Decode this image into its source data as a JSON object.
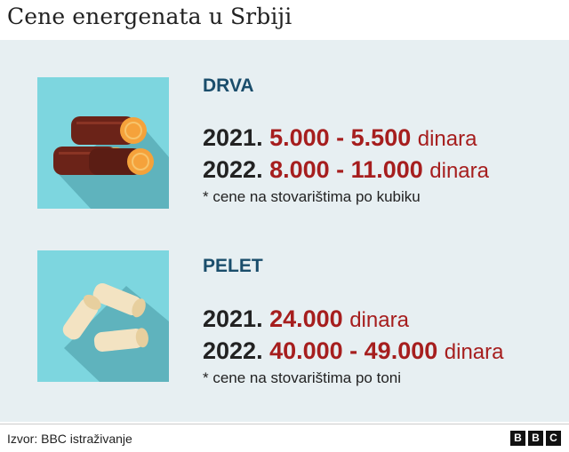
{
  "title": "Cene energenata u Srbiji",
  "items": [
    {
      "icon": "firewood-logs-icon",
      "category": "DRVA",
      "rows": [
        {
          "year": "2021.",
          "price": "5.000 - 5.500",
          "unit": "dinara"
        },
        {
          "year": "2022.",
          "price": "8.000 - 11.000",
          "unit": "dinara"
        }
      ],
      "note": "* cene na stovarištima po kubiku"
    },
    {
      "icon": "wood-pellets-icon",
      "category": "PELET",
      "rows": [
        {
          "year": "2021.",
          "price": "24.000",
          "unit": "dinara"
        },
        {
          "year": "2022.",
          "price": "40.000 - 49.000",
          "unit": "dinara"
        }
      ],
      "note": "* cene na stovarištima po toni"
    }
  ],
  "source": "Izvor: BBC istraživanje",
  "logo": [
    "B",
    "B",
    "C"
  ],
  "colors": {
    "panel": "#e7eff2",
    "tile": "#7dd6df",
    "category": "#1a4d6b",
    "price": "#a61e1e"
  }
}
